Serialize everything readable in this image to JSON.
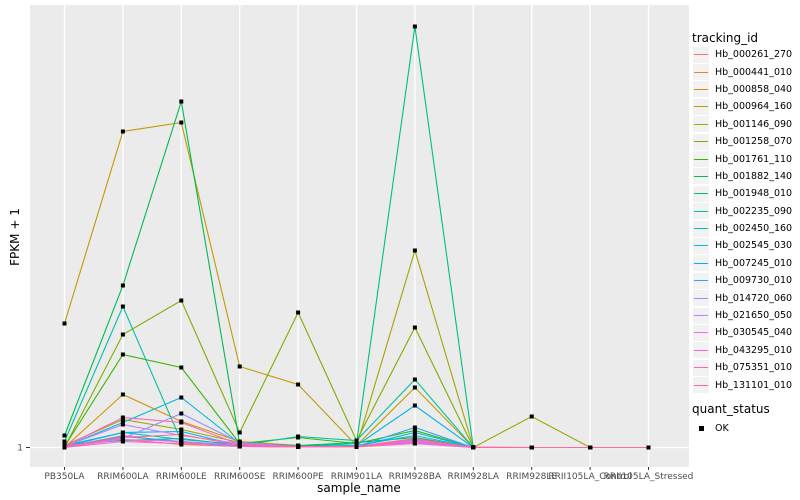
{
  "figure": {
    "y_axis": {
      "title": "FPKM + 1",
      "tick_labels": [
        "1"
      ]
    },
    "x_axis": {
      "title": "sample_name",
      "categories": [
        "PB350LA",
        "RRIM600LA",
        "RRIM600LE",
        "RRIM600SE",
        "RRIM600PE",
        "RRIM901LA",
        "RRIM928BA",
        "RRIM928LA",
        "RRIM928LE",
        "RRII105LA_Control",
        "RRII105LA_Stressed"
      ]
    },
    "legend": {
      "title": "tracking_id"
    },
    "legend2": {
      "title": "quant_status",
      "entries": [
        {
          "label": "OK",
          "marker": "black-square"
        }
      ]
    },
    "colors": {
      "panel_bg": "#EBEBEB",
      "gridline": "#FFFFFF",
      "tick_text": "#4D4D4D",
      "point": "#000000",
      "legend_key_bg": "#F2F2F2"
    }
  },
  "chart_data": {
    "type": "line",
    "title": "",
    "xlabel": "sample_name",
    "ylabel": "FPKM + 1",
    "x": [
      "PB350LA",
      "RRIM600LA",
      "RRIM600LE",
      "RRIM600SE",
      "RRIM600PE",
      "RRIM901LA",
      "RRIM928BA",
      "RRIM928LA",
      "RRIM928LE",
      "RRII105LA_Control",
      "RRII105LA_Stressed"
    ],
    "y_axis_visible_ticks": [
      "1"
    ],
    "y_units_note": "only the tick '1' is labeled on the axis; series values below are estimated plot heights above the y=1 baseline (relative units, max visible spike = 421)",
    "legend_position": "right",
    "grid": "white vertical gridline per category and one horizontal gridline at y=1 on gray panel",
    "point_marker": "small black square (quant_status = OK)",
    "series": [
      {
        "name": "Hb_000261_270",
        "color": "#F8766D",
        "values": [
          0.5,
          12,
          5,
          2,
          0.5,
          1,
          6,
          0,
          0,
          0,
          0
        ]
      },
      {
        "name": "Hb_000441_010",
        "color": "#EA8331",
        "values": [
          0.5,
          8,
          3,
          1,
          0.5,
          0.5,
          4,
          0,
          0,
          0,
          0
        ]
      },
      {
        "name": "Hb_000858_040",
        "color": "#D89000",
        "values": [
          0,
          53,
          26,
          6,
          2,
          1,
          8,
          0,
          0,
          0,
          0
        ]
      },
      {
        "name": "Hb_000964_160",
        "color": "#C09B00",
        "values": [
          124,
          316,
          325,
          81,
          63,
          2,
          60,
          0,
          0,
          0,
          0
        ]
      },
      {
        "name": "Hb_001146_090",
        "color": "#A3A500",
        "values": [
          2,
          28,
          18,
          5,
          2,
          1,
          197,
          0,
          31,
          0,
          0
        ]
      },
      {
        "name": "Hb_001258_070",
        "color": "#7CAE00",
        "values": [
          0,
          113,
          147,
          15,
          135,
          7,
          120,
          0,
          0,
          0,
          0
        ]
      },
      {
        "name": "Hb_001761_110",
        "color": "#39B600",
        "values": [
          1,
          93,
          80,
          4,
          10,
          4,
          17,
          0,
          0,
          0,
          0
        ]
      },
      {
        "name": "Hb_001882_140",
        "color": "#00BB4E",
        "values": [
          12,
          162,
          346,
          4,
          2,
          5,
          10,
          0,
          0,
          0,
          0
        ]
      },
      {
        "name": "Hb_001948_010",
        "color": "#00BF7D",
        "values": [
          3,
          7,
          9,
          2,
          1,
          4,
          421,
          0,
          0,
          0,
          0
        ]
      },
      {
        "name": "Hb_002235_090",
        "color": "#00C1A3",
        "values": [
          6,
          141,
          6,
          2,
          11,
          7,
          68,
          0,
          0,
          0,
          0
        ]
      },
      {
        "name": "Hb_002450_160",
        "color": "#00BFC4",
        "values": [
          2,
          15,
          8,
          3,
          1,
          2,
          12,
          0,
          0,
          0,
          0
        ]
      },
      {
        "name": "Hb_002545_030",
        "color": "#00BAE0",
        "values": [
          1,
          25,
          50,
          4,
          1,
          1,
          15,
          0,
          0,
          0,
          0
        ]
      },
      {
        "name": "Hb_007245_010",
        "color": "#00B0F6",
        "values": [
          1,
          15,
          16,
          2,
          1,
          2,
          42,
          0,
          0,
          0,
          0
        ]
      },
      {
        "name": "Hb_009730_010",
        "color": "#35A2FF",
        "values": [
          1,
          11,
          6,
          1,
          0.5,
          1,
          20,
          0,
          0,
          0,
          0
        ]
      },
      {
        "name": "Hb_014720_060",
        "color": "#9590FF",
        "values": [
          1,
          9,
          34,
          5,
          1,
          1,
          8,
          0,
          0,
          0,
          0
        ]
      },
      {
        "name": "Hb_021650_050",
        "color": "#C77CFF",
        "values": [
          1,
          23,
          12,
          4,
          1,
          1,
          6,
          0,
          0,
          0,
          0
        ]
      },
      {
        "name": "Hb_030545_040",
        "color": "#E76BF3",
        "values": [
          1,
          8,
          6,
          2,
          0.5,
          1,
          4,
          0,
          0,
          0,
          0
        ]
      },
      {
        "name": "Hb_043295_010",
        "color": "#FA62DB",
        "values": [
          0,
          6,
          4,
          1,
          0.5,
          1,
          5,
          0,
          0,
          0,
          0
        ]
      },
      {
        "name": "Hb_075351_010",
        "color": "#FF62BC",
        "values": [
          1,
          30,
          25,
          3,
          1,
          1,
          9,
          0,
          0,
          0,
          0
        ]
      },
      {
        "name": "Hb_131101_010",
        "color": "#FF6A98",
        "values": [
          1,
          10,
          13,
          2,
          0.5,
          1,
          7,
          0.5,
          0,
          0,
          0
        ]
      }
    ],
    "quant_status": "OK"
  }
}
